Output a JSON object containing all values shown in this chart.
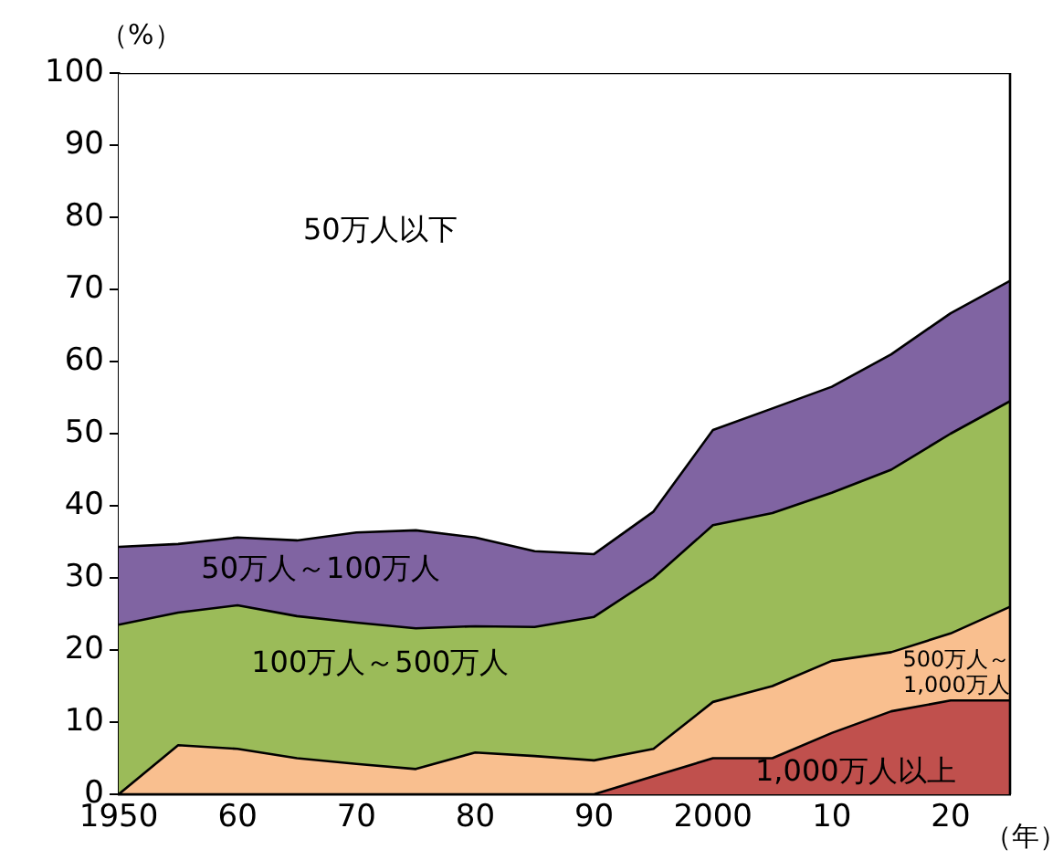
{
  "chart_data": {
    "type": "area",
    "stacked": true,
    "xlabel": "（年）",
    "ylabel": "（%）",
    "x": [
      1950,
      1955,
      1960,
      1965,
      1970,
      1975,
      1980,
      1985,
      1990,
      1995,
      2000,
      2005,
      2010,
      2015,
      2020,
      2025
    ],
    "series": [
      {
        "name": "1,000万人以上",
        "color": "#c0504d",
        "values": [
          0,
          0,
          0,
          0,
          0,
          0,
          0,
          0,
          0,
          2.5,
          5,
          5,
          8.5,
          11.5,
          13,
          13
        ]
      },
      {
        "name": "500万人～1,000万人",
        "color": "#f9bf8f",
        "values": [
          0,
          6.8,
          6.3,
          5,
          4.2,
          3.5,
          5.8,
          5.3,
          4.7,
          3.8,
          7.8,
          10,
          10,
          8.2,
          9.3,
          13
        ]
      },
      {
        "name": "100万人～500万人",
        "color": "#9bbb59",
        "values": [
          23.5,
          18.4,
          19.9,
          19.7,
          19.6,
          19.5,
          17.5,
          17.9,
          19.9,
          23.7,
          24.5,
          24,
          23.3,
          25.3,
          27.7,
          28.5
        ]
      },
      {
        "name": "50万人～100万人",
        "color": "#8064a2",
        "values": [
          10.8,
          9.5,
          9.4,
          10.5,
          12.5,
          13.6,
          12.3,
          10.5,
          8.7,
          9.2,
          13.2,
          14.5,
          14.7,
          16,
          16.7,
          16.7
        ]
      },
      {
        "name": "50万人以下",
        "color": "#ffffff",
        "values": [
          65.7,
          65.3,
          64.4,
          64.8,
          63.7,
          63.4,
          64.4,
          66.3,
          66.7,
          60.8,
          49.5,
          46.5,
          43.5,
          39,
          33.3,
          28.8
        ]
      }
    ],
    "xlim": [
      1950,
      2025
    ],
    "xticks": [
      1950,
      {
        "value": 1960,
        "label": "60"
      },
      {
        "value": 1970,
        "label": "70"
      },
      {
        "value": 1980,
        "label": "80"
      },
      {
        "value": 1990,
        "label": "90"
      },
      2000,
      {
        "value": 2010,
        "label": "10"
      },
      {
        "value": 2020,
        "label": "20"
      }
    ],
    "ylim": [
      0,
      100
    ],
    "yticks": [
      0,
      10,
      20,
      30,
      40,
      50,
      60,
      70,
      80,
      90,
      100
    ],
    "grid": false,
    "legend": false
  }
}
